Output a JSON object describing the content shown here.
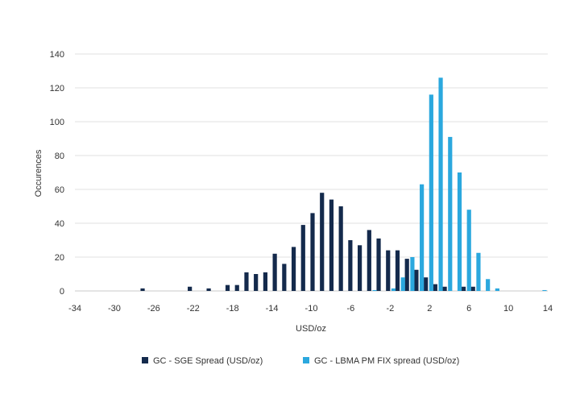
{
  "chart_data": {
    "type": "bar",
    "title": "",
    "xlabel": "USD/oz",
    "ylabel": "Occurences",
    "xlim": [
      -34,
      14
    ],
    "ylim": [
      0,
      140
    ],
    "x_ticks": [
      "-34",
      "-30",
      "-26",
      "-22",
      "-18",
      "-14",
      "-10",
      "-6",
      "-2",
      "2",
      "6",
      "10",
      "14"
    ],
    "y_ticks": [
      "0",
      "20",
      "40",
      "60",
      "80",
      "100",
      "120",
      "140"
    ],
    "grid": true,
    "legend_position": "bottom",
    "series": [
      {
        "name": "GC - SGE Spread (USD/oz)",
        "color": "#142a4c",
        "bins": [
          -28,
          -23,
          -21,
          -19,
          -18,
          -17,
          -16,
          -15,
          -14,
          -13,
          -12,
          -11,
          -10,
          -9,
          -8,
          -7,
          -6,
          -5,
          -4,
          -3,
          -2,
          -1,
          0,
          1,
          2,
          3,
          4,
          6,
          7
        ],
        "values": [
          1.5,
          2.5,
          1.5,
          3.5,
          3.5,
          11,
          10,
          11,
          22,
          16,
          26,
          39,
          46,
          58,
          54,
          50,
          30,
          27,
          36,
          31,
          24,
          24,
          19,
          12.5,
          8,
          4,
          2.5,
          2.5,
          2.5
        ]
      },
      {
        "name": "GC - LBMA PM FIX spread (USD/oz)",
        "color": "#2ba8de",
        "bins": [
          -4,
          -2,
          -1,
          0,
          1,
          2,
          3,
          4,
          5,
          6,
          7,
          8,
          9,
          14
        ],
        "values": [
          0.5,
          1.5,
          8,
          20,
          63,
          116,
          126,
          91,
          70,
          48,
          22.5,
          7,
          1.5,
          0.5
        ]
      }
    ]
  }
}
